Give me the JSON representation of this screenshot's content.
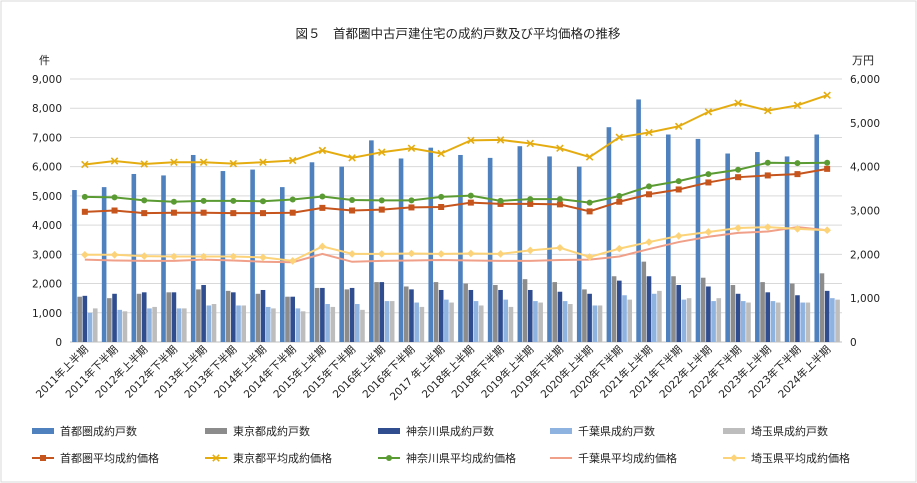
{
  "chart_data": {
    "type": "bar",
    "title": "図５　首都圏中古戸建住宅の成約戸数及び平均価格の推移",
    "left_unit": "件",
    "right_unit": "万円",
    "categories": [
      "2011年上半期",
      "2011年下半期",
      "2012年上半期",
      "2012年下半期",
      "2013年上半期",
      "2013年下半期",
      "2014年上半期",
      "2014年下半期",
      "2015年上半期",
      "2015年下半期",
      "2016年上半期",
      "2016年下半期",
      "2017 年上半期",
      "2018年上半期",
      "2018年下半期",
      "2019年上半期",
      "2019年下半期",
      "2020年上半期",
      "2020年下半期",
      "2021年上半期",
      "2021年下半期",
      "2022年上半期",
      "2022年下半期",
      "2023年上半期",
      "2023年下半期",
      "2024年上半期"
    ],
    "ylim_left": [
      0,
      9000
    ],
    "yticks_left": [
      "0",
      "1,000",
      "2,000",
      "3,000",
      "4,000",
      "5,000",
      "6,000",
      "7,000",
      "8,000",
      "9,000"
    ],
    "ylim_right": [
      0,
      6000
    ],
    "yticks_right": [
      "0",
      "1,000",
      "2,000",
      "3,000",
      "4,000",
      "5,000",
      "6,000"
    ],
    "grid": true,
    "legend_position": "bottom",
    "bar_series": [
      {
        "name": "首都圏成約戸数",
        "color": "#4e81bd",
        "values": [
          5200,
          5300,
          5750,
          5700,
          6400,
          5850,
          5900,
          5300,
          6150,
          6000,
          6900,
          6280,
          6650,
          6400,
          6300,
          6700,
          6350,
          6000,
          7350,
          8300,
          7100,
          6950,
          6450,
          6500,
          6350,
          7100
        ]
      },
      {
        "name": "東京都成約戸数",
        "color": "#8c8c8c",
        "values": [
          1550,
          1500,
          1650,
          1700,
          1800,
          1750,
          1650,
          1550,
          1850,
          1800,
          2050,
          1900,
          2050,
          2000,
          1950,
          2150,
          2050,
          1800,
          2250,
          2750,
          2250,
          2200,
          1950,
          2050,
          2000,
          2350
        ]
      },
      {
        "name": "神奈川県成約戸数",
        "color": "#2f4d8f",
        "values": [
          1580,
          1650,
          1700,
          1700,
          1950,
          1700,
          1780,
          1550,
          1850,
          1850,
          2050,
          1800,
          1780,
          1780,
          1780,
          1780,
          1720,
          1650,
          2100,
          2250,
          1950,
          1900,
          1650,
          1700,
          1600,
          1750
        ]
      },
      {
        "name": "千葉県成約戸数",
        "color": "#8fb3e0",
        "values": [
          1000,
          1100,
          1150,
          1150,
          1250,
          1250,
          1200,
          1150,
          1300,
          1300,
          1400,
          1350,
          1450,
          1400,
          1450,
          1400,
          1400,
          1250,
          1600,
          1650,
          1450,
          1400,
          1400,
          1400,
          1350,
          1500
        ]
      },
      {
        "name": "埼玉県成約戸数",
        "color": "#bdbdbd",
        "values": [
          1150,
          1050,
          1200,
          1150,
          1300,
          1250,
          1150,
          1050,
          1200,
          1100,
          1400,
          1200,
          1350,
          1250,
          1200,
          1350,
          1300,
          1250,
          1450,
          1750,
          1500,
          1500,
          1350,
          1350,
          1350,
          1450
        ]
      }
    ],
    "line_series": [
      {
        "name": "首都圏平均成約価格",
        "color": "#c5541d",
        "marker": "square",
        "values": [
          2970,
          3000,
          2940,
          2950,
          2950,
          2940,
          2940,
          2950,
          3060,
          3000,
          3020,
          3070,
          3080,
          3180,
          3150,
          3150,
          3140,
          2980,
          3200,
          3370,
          3480,
          3640,
          3760,
          3800,
          3830,
          3950
        ]
      },
      {
        "name": "東京都平均成約価格",
        "color": "#e5ac10",
        "marker": "x",
        "values": [
          4050,
          4130,
          4060,
          4100,
          4100,
          4070,
          4100,
          4140,
          4370,
          4200,
          4330,
          4420,
          4300,
          4600,
          4610,
          4530,
          4420,
          4220,
          4670,
          4780,
          4920,
          5250,
          5450,
          5280,
          5400,
          5630
        ]
      },
      {
        "name": "神奈川県平均成約価格",
        "color": "#5b9b33",
        "marker": "circle",
        "values": [
          3310,
          3300,
          3230,
          3200,
          3220,
          3220,
          3210,
          3250,
          3320,
          3240,
          3230,
          3230,
          3310,
          3340,
          3220,
          3260,
          3260,
          3180,
          3330,
          3550,
          3670,
          3830,
          3930,
          4090,
          4080,
          4090
        ]
      },
      {
        "name": "千葉県平均成約価格",
        "color": "#f0a089",
        "marker": "none",
        "values": [
          1880,
          1860,
          1850,
          1850,
          1880,
          1860,
          1830,
          1820,
          2010,
          1830,
          1850,
          1860,
          1870,
          1860,
          1850,
          1850,
          1870,
          1880,
          1950,
          2120,
          2280,
          2400,
          2490,
          2520,
          2620,
          2550
        ]
      },
      {
        "name": "埼玉県平均成約価格",
        "color": "#fcd378",
        "marker": "diamond",
        "values": [
          1990,
          1990,
          1960,
          1950,
          1950,
          1950,
          1930,
          1850,
          2180,
          2010,
          2010,
          2020,
          2010,
          2020,
          2010,
          2090,
          2150,
          1940,
          2130,
          2280,
          2420,
          2510,
          2600,
          2620,
          2580,
          2550
        ]
      }
    ]
  }
}
